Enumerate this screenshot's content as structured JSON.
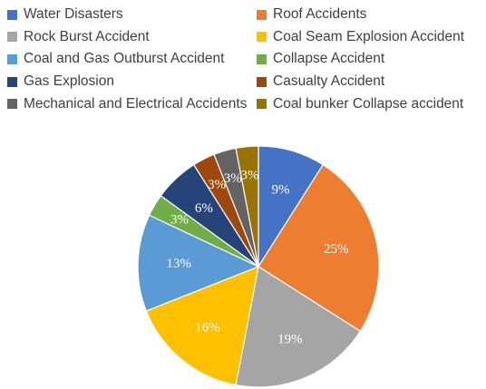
{
  "chart_data": {
    "type": "pie",
    "legend_position": "top",
    "title": "",
    "start_angle_deg": 0,
    "direction": "clockwise",
    "slices": [
      {
        "name": "Water Disasters",
        "value": 9,
        "label": "9%",
        "color": "#4472C4"
      },
      {
        "name": "Roof Accidents",
        "value": 25,
        "label": "25%",
        "color": "#ED7D31"
      },
      {
        "name": "Rock Burst Accident",
        "value": 19,
        "label": "19%",
        "color": "#A5A5A5"
      },
      {
        "name": "Coal Seam Explosion Accident",
        "value": 16,
        "label": "16%",
        "color": "#FFC000"
      },
      {
        "name": "Coal and Gas Outburst Accident",
        "value": 13,
        "label": "13%",
        "color": "#5B9BD5"
      },
      {
        "name": "Collapse Accident",
        "value": 3,
        "label": "3%",
        "color": "#70AD47"
      },
      {
        "name": "Gas Explosion",
        "value": 6,
        "label": "6%",
        "color": "#264478"
      },
      {
        "name": "Casualty Accident",
        "value": 3,
        "label": "3%",
        "color": "#9E480E"
      },
      {
        "name": "Mechanical and Electrical Accidents",
        "value": 3,
        "label": "3%",
        "color": "#636363"
      },
      {
        "name": "Coal bunker Collapse accident",
        "value": 3,
        "label": "3%",
        "color": "#997300"
      }
    ]
  }
}
